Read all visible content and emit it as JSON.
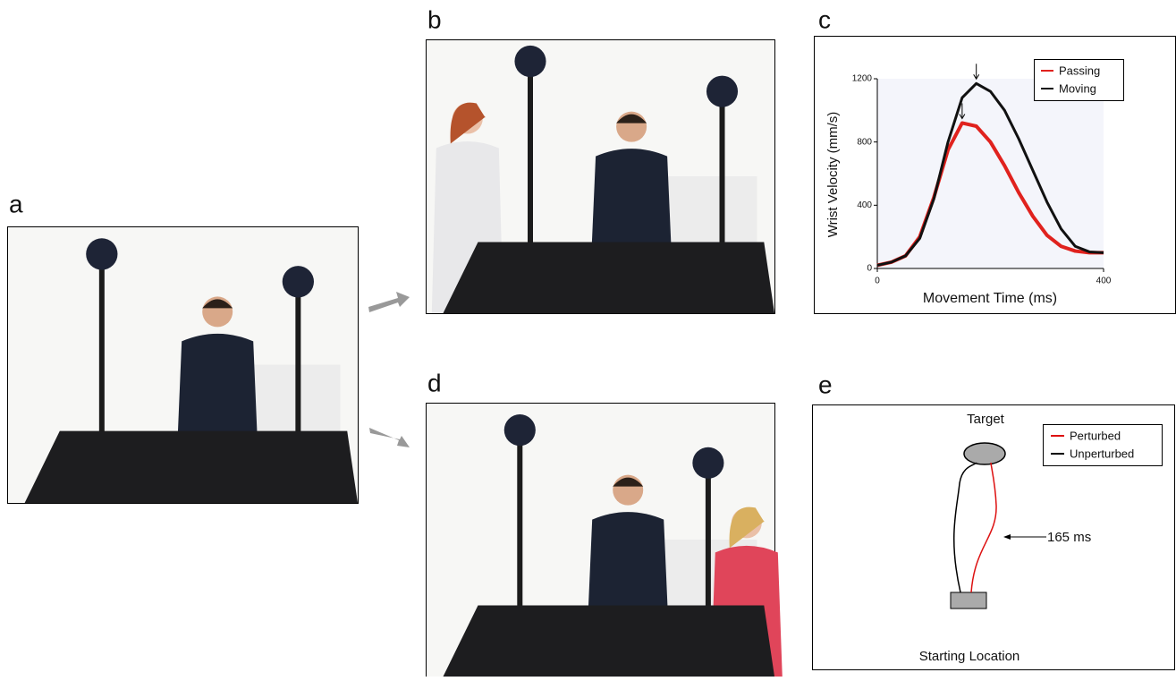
{
  "panels": {
    "a": "a",
    "b": "b",
    "c": "c",
    "d": "d",
    "e": "e"
  },
  "chart_data": {
    "type": "line",
    "x_label": "Movement Time (ms)",
    "y_label": "Wrist Velocity (mm/s)",
    "x": [
      0,
      25,
      50,
      75,
      100,
      125,
      150,
      175,
      200,
      225,
      250,
      275,
      300,
      325,
      350,
      375,
      400
    ],
    "series": [
      {
        "name": "Passing",
        "color": "#e0221e",
        "values": [
          20,
          40,
          80,
          200,
          450,
          750,
          920,
          900,
          800,
          650,
          480,
          330,
          210,
          140,
          110,
          100,
          100
        ]
      },
      {
        "name": "Moving",
        "color": "#111111",
        "values": [
          20,
          40,
          80,
          190,
          440,
          800,
          1080,
          1170,
          1120,
          1000,
          820,
          620,
          420,
          250,
          140,
          105,
          100
        ]
      }
    ],
    "xlim": [
      0,
      400
    ],
    "xticks": [
      0,
      400
    ],
    "ylim": [
      0,
      1200
    ],
    "yticks": [
      0,
      400,
      800,
      1200
    ],
    "legend": "top-right"
  },
  "diagram": {
    "target": "Target",
    "start": "Starting Location",
    "time": "165 ms",
    "legend": [
      "Perturbed",
      "Unperturbed"
    ]
  }
}
